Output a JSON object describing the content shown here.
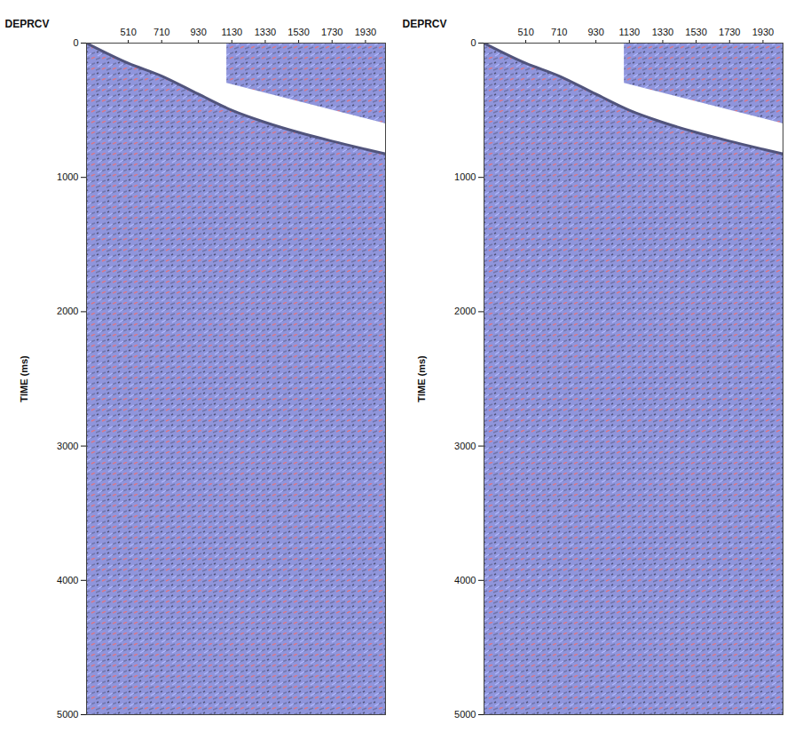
{
  "chart_data": [
    {
      "type": "area",
      "xlabel": "DEPRCV",
      "ylabel": "TIME (ms)",
      "xlim": [
        260,
        2050
      ],
      "xticks": [
        510,
        710,
        930,
        1130,
        1330,
        1530,
        1730,
        1930
      ],
      "ylim": [
        0,
        5000
      ],
      "yticks": [
        0,
        1000,
        2000,
        3000,
        4000,
        5000
      ],
      "x": [
        260,
        510,
        710,
        930,
        1130,
        1330,
        1530,
        1730,
        1930,
        2050
      ],
      "values": [
        0,
        150,
        245,
        380,
        500,
        590,
        665,
        730,
        790,
        825
      ],
      "upper_block": {
        "x": [
          1100,
          2050
        ],
        "values": [
          300,
          600
        ]
      },
      "color": "#8f95dc"
    },
    {
      "type": "area",
      "xlabel": "DEPRCV",
      "ylabel": "TIME (ms)",
      "xlim": [
        260,
        2050
      ],
      "xticks": [
        510,
        710,
        930,
        1130,
        1330,
        1530,
        1730,
        1930
      ],
      "ylim": [
        0,
        5000
      ],
      "yticks": [
        0,
        1000,
        2000,
        3000,
        4000,
        5000
      ],
      "x": [
        260,
        510,
        710,
        930,
        1130,
        1330,
        1530,
        1730,
        1930,
        2050
      ],
      "values": [
        0,
        150,
        245,
        380,
        500,
        590,
        665,
        730,
        790,
        825
      ],
      "upper_block": {
        "x": [
          1100,
          2050
        ],
        "values": [
          300,
          600
        ]
      },
      "color": "#8f95dc"
    }
  ]
}
